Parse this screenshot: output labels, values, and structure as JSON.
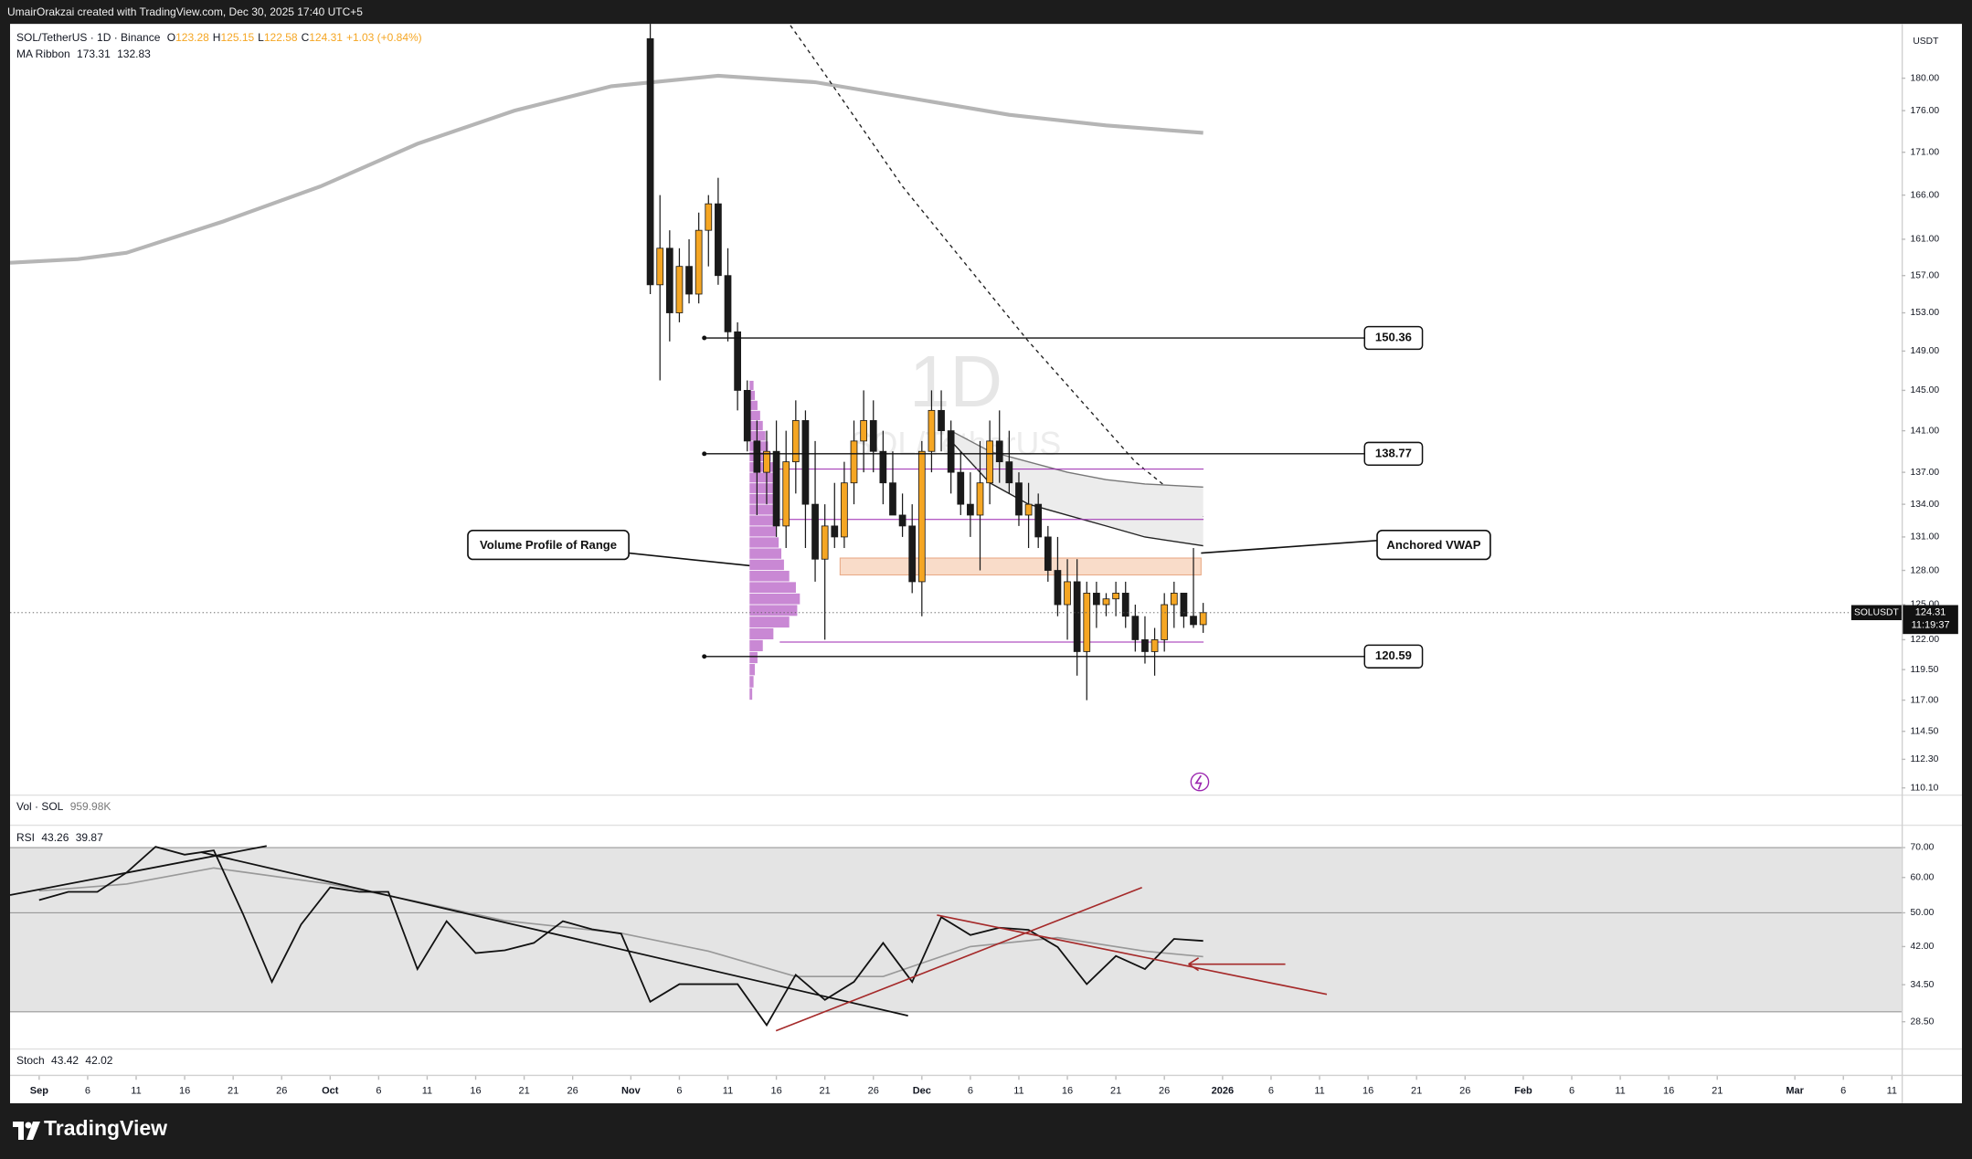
{
  "header": {
    "attribution": "UmairOrakzai created with TradingView.com, Dec 30, 2025 17:40 UTC+5",
    "symbol": "SOL/TetherUS · 1D · Binance",
    "ohlc_labels": [
      "O",
      "H",
      "L",
      "C"
    ],
    "change": "+1.03 (+0.84%)",
    "ma_ribbon": "MA Ribbon",
    "volume": "Vol · SOL",
    "volume_value": "959.98K",
    "stoch": "Stoch",
    "stoch_values": [
      43.42,
      42.02
    ],
    "brand": "TradingView"
  },
  "chart_data": [
    {
      "type": "candlestick",
      "axis_unit": "USDT",
      "watermark": [
        "1D",
        "SOL/TetherUS"
      ],
      "log_scale": true,
      "grid": false,
      "up_color": "#f5a623",
      "down_color": "#1a1a1a",
      "x": [
        "2025-11-03",
        "2025-11-04",
        "2025-11-05",
        "2025-11-06",
        "2025-11-07",
        "2025-11-08",
        "2025-11-09",
        "2025-11-10",
        "2025-11-11",
        "2025-11-12",
        "2025-11-13",
        "2025-11-14",
        "2025-11-15",
        "2025-11-16",
        "2025-11-17",
        "2025-11-18",
        "2025-11-19",
        "2025-11-20",
        "2025-11-21",
        "2025-11-22",
        "2025-11-23",
        "2025-11-24",
        "2025-11-25",
        "2025-11-26",
        "2025-11-27",
        "2025-11-28",
        "2025-11-29",
        "2025-11-30",
        "2025-12-01",
        "2025-12-02",
        "2025-12-03",
        "2025-12-04",
        "2025-12-05",
        "2025-12-06",
        "2025-12-07",
        "2025-12-08",
        "2025-12-09",
        "2025-12-10",
        "2025-12-11",
        "2025-12-12",
        "2025-12-13",
        "2025-12-14",
        "2025-12-15",
        "2025-12-16",
        "2025-12-17",
        "2025-12-18",
        "2025-12-19",
        "2025-12-20",
        "2025-12-21",
        "2025-12-22",
        "2025-12-23",
        "2025-12-24",
        "2025-12-25",
        "2025-12-26",
        "2025-12-27",
        "2025-12-28",
        "2025-12-29",
        "2025-12-30"
      ],
      "open": [
        185,
        156,
        160,
        153,
        158,
        155,
        162,
        165,
        157,
        151,
        145,
        140,
        137,
        139,
        132,
        138,
        142,
        134,
        129,
        132,
        131,
        136,
        140,
        142,
        139,
        136,
        133,
        132,
        127,
        139,
        143,
        141,
        137,
        134,
        133,
        136,
        140,
        138,
        136,
        133,
        134,
        131,
        128,
        125,
        127,
        121,
        126,
        125,
        125.5,
        126,
        124,
        122,
        121,
        122,
        125,
        126,
        124,
        123.28
      ],
      "high": [
        190,
        166,
        162,
        160,
        161,
        164,
        166,
        168,
        160,
        152,
        146,
        142,
        141,
        142,
        141,
        144,
        143,
        140,
        134,
        136,
        138,
        142,
        145,
        144,
        141,
        139,
        135,
        134,
        140,
        145,
        145,
        142,
        139,
        137,
        140,
        142,
        143,
        141,
        137,
        136,
        135,
        132,
        131,
        129,
        129,
        127,
        127,
        126,
        127,
        127,
        125,
        124,
        123,
        126,
        127,
        126,
        130,
        125.15
      ],
      "low": [
        155,
        146,
        150,
        152,
        154,
        154,
        158,
        156,
        150,
        143,
        139,
        133,
        134,
        131,
        130,
        135,
        130,
        127,
        122,
        130,
        130,
        134,
        137,
        137,
        134,
        133,
        131,
        126,
        124,
        137,
        139,
        135,
        133,
        131,
        128,
        134,
        136,
        135,
        132,
        130,
        130,
        127,
        124,
        122,
        119,
        117,
        123,
        124,
        124,
        123,
        121,
        120,
        119,
        121,
        123,
        123,
        123,
        122.58
      ],
      "close": [
        156,
        160,
        153,
        158,
        155,
        162,
        165,
        157,
        151,
        145,
        140,
        137,
        139,
        132,
        138,
        142,
        134,
        129,
        132,
        131,
        136,
        140,
        142,
        139,
        136,
        133,
        132,
        127,
        139,
        143,
        141,
        137,
        134,
        133,
        136,
        140,
        138,
        136,
        133,
        134,
        131,
        128,
        125,
        127,
        121,
        126,
        125,
        125.5,
        126,
        124,
        122,
        121,
        122,
        125,
        126,
        124,
        123.28,
        124.31
      ],
      "ylim": [
        109.6,
        186.9
      ],
      "yticks": [
        {
          "value": 180,
          "label": "180.00"
        },
        {
          "value": 176,
          "label": "176.00"
        },
        {
          "value": 171,
          "label": "171.00"
        },
        {
          "value": 166,
          "label": "166.00"
        },
        {
          "value": 161,
          "label": "161.00"
        },
        {
          "value": 157,
          "label": "157.00"
        },
        {
          "value": 153,
          "label": "153.00"
        },
        {
          "value": 149,
          "label": "149.00"
        },
        {
          "value": 145,
          "label": "145.00"
        },
        {
          "value": 141,
          "label": "141.00"
        },
        {
          "value": 137,
          "label": "137.00"
        },
        {
          "value": 134,
          "label": "134.00"
        },
        {
          "value": 131,
          "label": "131.00"
        },
        {
          "value": 128,
          "label": "128.00"
        },
        {
          "value": 125,
          "label": "125.00"
        },
        {
          "value": 122,
          "label": "122.00"
        },
        {
          "value": 119.5,
          "label": "119.50"
        },
        {
          "value": 117,
          "label": "117.00"
        },
        {
          "value": 114.5,
          "label": "114.50"
        },
        {
          "value": 112.3,
          "label": "112.30"
        },
        {
          "value": 110.1,
          "label": "110.10"
        }
      ],
      "xlim": [
        "2025-08-29",
        "2026-03-12"
      ],
      "xticks": [
        {
          "value": "2025-09-01",
          "label": "Sep"
        },
        {
          "value": "2025-09-06",
          "label": "6"
        },
        {
          "value": "2025-09-11",
          "label": "11"
        },
        {
          "value": "2025-09-16",
          "label": "16"
        },
        {
          "value": "2025-09-21",
          "label": "21"
        },
        {
          "value": "2025-09-26",
          "label": "26"
        },
        {
          "value": "2025-10-01",
          "label": "Oct"
        },
        {
          "value": "2025-10-06",
          "label": "6"
        },
        {
          "value": "2025-10-11",
          "label": "11"
        },
        {
          "value": "2025-10-16",
          "label": "16"
        },
        {
          "value": "2025-10-21",
          "label": "21"
        },
        {
          "value": "2025-10-26",
          "label": "26"
        },
        {
          "value": "2025-11-01",
          "label": "Nov"
        },
        {
          "value": "2025-11-06",
          "label": "6"
        },
        {
          "value": "2025-11-11",
          "label": "11"
        },
        {
          "value": "2025-11-16",
          "label": "16"
        },
        {
          "value": "2025-11-21",
          "label": "21"
        },
        {
          "value": "2025-11-26",
          "label": "26"
        },
        {
          "value": "2025-12-01",
          "label": "Dec"
        },
        {
          "value": "2025-12-06",
          "label": "6"
        },
        {
          "value": "2025-12-11",
          "label": "11"
        },
        {
          "value": "2025-12-16",
          "label": "16"
        },
        {
          "value": "2025-12-21",
          "label": "21"
        },
        {
          "value": "2025-12-26",
          "label": "26"
        },
        {
          "value": "2026-01-01",
          "label": "2026"
        },
        {
          "value": "2026-01-06",
          "label": "6"
        },
        {
          "value": "2026-01-11",
          "label": "11"
        },
        {
          "value": "2026-01-16",
          "label": "16"
        },
        {
          "value": "2026-01-21",
          "label": "21"
        },
        {
          "value": "2026-01-26",
          "label": "26"
        },
        {
          "value": "2026-02-01",
          "label": "Feb"
        },
        {
          "value": "2026-02-06",
          "label": "6"
        },
        {
          "value": "2026-02-11",
          "label": "11"
        },
        {
          "value": "2026-02-16",
          "label": "16"
        },
        {
          "value": "2026-02-21",
          "label": "21"
        },
        {
          "value": "2026-03-01",
          "label": "Mar"
        },
        {
          "value": "2026-03-06",
          "label": "6"
        },
        {
          "value": "2026-03-11",
          "label": "11"
        }
      ],
      "ma_lines": [
        {
          "color": "#b5b5b5",
          "style": "solid",
          "x": [
            "2025-08-29",
            "2025-09-05",
            "2025-09-10",
            "2025-09-20",
            "2025-09-30",
            "2025-10-10",
            "2025-10-20",
            "2025-10-30",
            "2025-11-10",
            "2025-11-20",
            "2025-11-30",
            "2025-12-10",
            "2025-12-20",
            "2025-12-30"
          ],
          "values": [
            158.4,
            158.8,
            159.5,
            163,
            167,
            172,
            176,
            179,
            180.3,
            179.5,
            177.5,
            175.5,
            174.2,
            173.31
          ]
        },
        {
          "color": "#222222",
          "style": "dashed",
          "x": [
            "2025-11-17",
            "2025-11-21",
            "2025-11-29",
            "2025-12-12",
            "2025-12-23",
            "2025-12-30"
          ],
          "values": [
            187.5,
            180.5,
            167,
            150,
            138,
            132.83
          ]
        }
      ],
      "levels": [
        150.36,
        138.77,
        120.59
      ],
      "value_area_lines": [
        137.3,
        132.6,
        121.8
      ],
      "vwap_zone": [
        127.6,
        129.1
      ],
      "anchored_vwap": {
        "x": [
          "2025-12-04",
          "2025-12-08",
          "2025-12-12",
          "2025-12-16",
          "2025-12-20",
          "2025-12-24",
          "2025-12-30"
        ],
        "upper": [
          141,
          139,
          138,
          137,
          136.3,
          135.9,
          135.6
        ],
        "mid": [
          140,
          136,
          134,
          133,
          132,
          131,
          130.2
        ]
      },
      "volume_profile": {
        "bins": [
          117,
          118,
          119,
          120,
          121,
          122,
          123,
          124,
          125,
          126,
          127,
          128,
          129,
          130,
          131,
          132,
          133,
          134,
          135,
          136,
          137,
          138,
          139,
          140,
          141,
          142,
          143,
          144,
          145,
          146
        ],
        "values": [
          2,
          3,
          4,
          6,
          10,
          18,
          30,
          36,
          38,
          35,
          30,
          26,
          24,
          22,
          20,
          20,
          18,
          20,
          22,
          20,
          18,
          16,
          14,
          12,
          10,
          8,
          6,
          4,
          3
        ],
        "color": "#9c27b0"
      },
      "last_price": {
        "symbol": "SOLUSDT",
        "value": 124.31,
        "countdown": "11:19:37"
      },
      "annotations": [
        "Volume Profile of Range",
        "Anchored VWAP"
      ]
    },
    {
      "type": "line",
      "title": "RSI",
      "log_scale": true,
      "ylim": [
        25.0,
        78.3
      ],
      "yticks": [
        {
          "value": 70,
          "label": "70.00"
        },
        {
          "value": 60,
          "label": "60.00"
        },
        {
          "value": 50,
          "label": "50.00"
        },
        {
          "value": 42,
          "label": "42.00"
        },
        {
          "value": 34.5,
          "label": "34.50"
        },
        {
          "value": 28.5,
          "label": "28.50"
        }
      ],
      "band": [
        30,
        70
      ],
      "midline": 50,
      "series": [
        {
          "name": "RSI",
          "color": "#111111",
          "x": [
            "2025-09-01",
            "2025-09-04",
            "2025-09-07",
            "2025-09-10",
            "2025-09-13",
            "2025-09-16",
            "2025-09-19",
            "2025-09-22",
            "2025-09-25",
            "2025-09-28",
            "2025-10-01",
            "2025-10-04",
            "2025-10-07",
            "2025-10-10",
            "2025-10-13",
            "2025-10-16",
            "2025-10-19",
            "2025-10-22",
            "2025-10-25",
            "2025-10-28",
            "2025-10-31",
            "2025-11-03",
            "2025-11-06",
            "2025-11-09",
            "2025-11-12",
            "2025-11-15",
            "2025-11-18",
            "2025-11-21",
            "2025-11-24",
            "2025-11-27",
            "2025-11-30",
            "2025-12-03",
            "2025-12-06",
            "2025-12-09",
            "2025-12-12",
            "2025-12-15",
            "2025-12-18",
            "2025-12-21",
            "2025-12-24",
            "2025-12-27",
            "2025-12-30"
          ],
          "values": [
            53.4,
            55.7,
            55.7,
            61.5,
            70.3,
            67.5,
            69.0,
            49.8,
            35.0,
            47.1,
            57.0,
            55.7,
            55.7,
            37.4,
            47.9,
            40.6,
            41.2,
            42.8,
            47.9,
            45.9,
            44.9,
            31.6,
            34.6,
            34.6,
            34.6,
            28.0,
            36.3,
            31.9,
            35.0,
            42.8,
            35.0,
            48.9,
            44.6,
            46.3,
            45.8,
            41.9,
            34.6,
            40.0,
            37.4,
            43.7,
            43.26
          ]
        },
        {
          "name": "RSI MA",
          "color": "#999999",
          "x": [
            "2025-09-01",
            "2025-09-10",
            "2025-09-19",
            "2025-10-01",
            "2025-10-10",
            "2025-10-19",
            "2025-10-31",
            "2025-11-09",
            "2025-11-18",
            "2025-11-27",
            "2025-12-06",
            "2025-12-15",
            "2025-12-24",
            "2025-12-30"
          ],
          "values": [
            56,
            58,
            63,
            58,
            53,
            48,
            45,
            41,
            36,
            36,
            42,
            44,
            41,
            39.87
          ]
        }
      ]
    }
  ]
}
